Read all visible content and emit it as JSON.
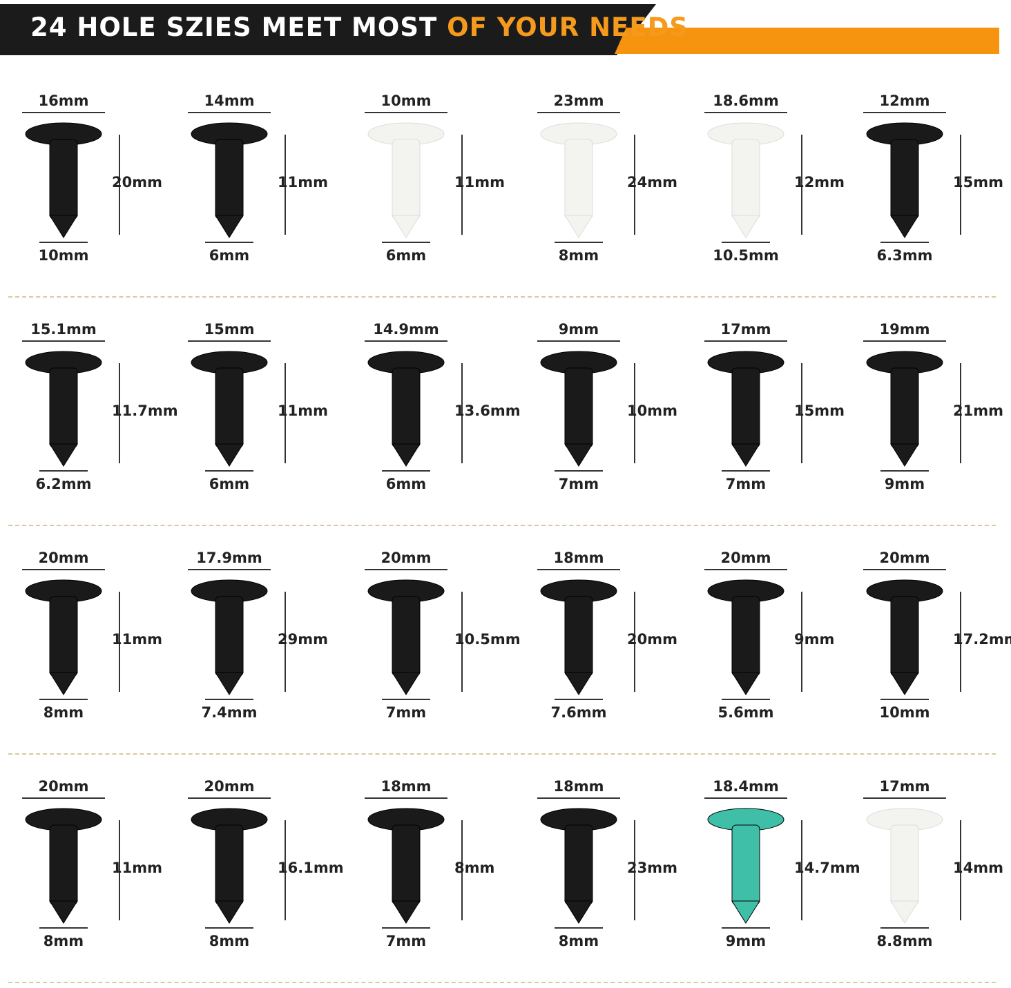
{
  "header": {
    "title_white": "24 HOLE SZIES MEET MOST",
    "title_orange": "OF YOUR NEEDS",
    "colors": {
      "banner": "#1b1b1b",
      "accent": "#f7940f"
    }
  },
  "rows": [
    [
      {
        "width": "16mm",
        "height": "20mm",
        "hole": "10mm",
        "color": "#1a1a1a"
      },
      {
        "width": "14mm",
        "height": "11mm",
        "hole": "6mm",
        "color": "#1a1a1a"
      },
      {
        "width": "10mm",
        "height": "11mm",
        "hole": "6mm",
        "color": "#f3f3f0"
      },
      {
        "width": "23mm",
        "height": "24mm",
        "hole": "8mm",
        "color": "#f3f3f0"
      },
      {
        "width": "18.6mm",
        "height": "12mm",
        "hole": "10.5mm",
        "color": "#f3f3f0"
      },
      {
        "width": "12mm",
        "height": "15mm",
        "hole": "6.3mm",
        "color": "#1a1a1a"
      }
    ],
    [
      {
        "width": "15.1mm",
        "height": "11.7mm",
        "hole": "6.2mm",
        "color": "#1a1a1a"
      },
      {
        "width": "15mm",
        "height": "11mm",
        "hole": "6mm",
        "color": "#1a1a1a"
      },
      {
        "width": "14.9mm",
        "height": "13.6mm",
        "hole": "6mm",
        "color": "#1a1a1a"
      },
      {
        "width": "9mm",
        "height": "10mm",
        "hole": "7mm",
        "color": "#1a1a1a"
      },
      {
        "width": "17mm",
        "height": "15mm",
        "hole": "7mm",
        "color": "#1a1a1a"
      },
      {
        "width": "19mm",
        "height": "21mm",
        "hole": "9mm",
        "color": "#1a1a1a"
      }
    ],
    [
      {
        "width": "20mm",
        "height": "11mm",
        "hole": "8mm",
        "color": "#1a1a1a"
      },
      {
        "width": "17.9mm",
        "height": "29mm",
        "hole": "7.4mm",
        "color": "#1a1a1a"
      },
      {
        "width": "20mm",
        "height": "10.5mm",
        "hole": "7mm",
        "color": "#1a1a1a"
      },
      {
        "width": "18mm",
        "height": "20mm",
        "hole": "7.6mm",
        "color": "#1a1a1a"
      },
      {
        "width": "20mm",
        "height": "9mm",
        "hole": "5.6mm",
        "color": "#1a1a1a"
      },
      {
        "width": "20mm",
        "height": "17.2mm",
        "hole": "10mm",
        "color": "#1a1a1a"
      }
    ],
    [
      {
        "width": "20mm",
        "height": "11mm",
        "hole": "8mm",
        "color": "#1a1a1a"
      },
      {
        "width": "20mm",
        "height": "16.1mm",
        "hole": "8mm",
        "color": "#1a1a1a"
      },
      {
        "width": "18mm",
        "height": "8mm",
        "hole": "7mm",
        "color": "#1a1a1a"
      },
      {
        "width": "18mm",
        "height": "23mm",
        "hole": "8mm",
        "color": "#1a1a1a"
      },
      {
        "width": "18.4mm",
        "height": "14.7mm",
        "hole": "9mm",
        "color": "#3fbfa8"
      },
      {
        "width": "17mm",
        "height": "14mm",
        "hole": "8.8mm",
        "color": "#f3f3f0"
      }
    ]
  ]
}
